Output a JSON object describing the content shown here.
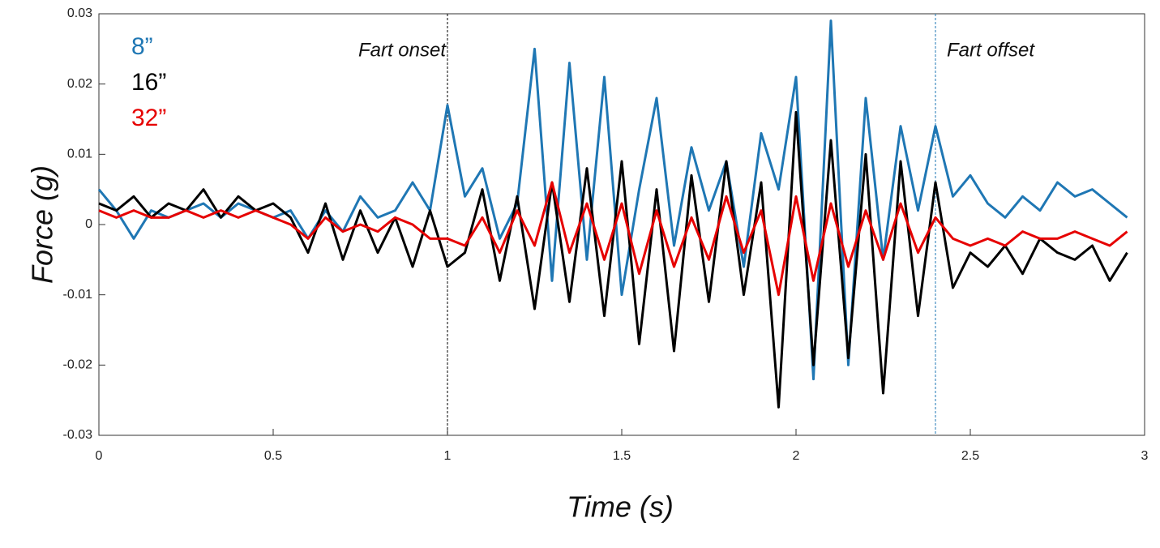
{
  "chart_data": {
    "type": "line",
    "xlabel": "Time (s)",
    "ylabel": "Force (g)",
    "x": [
      0,
      0.05,
      0.1,
      0.15,
      0.2,
      0.25,
      0.3,
      0.35,
      0.4,
      0.45,
      0.5,
      0.55,
      0.6,
      0.65,
      0.7,
      0.75,
      0.8,
      0.85,
      0.9,
      0.95,
      1,
      1.05,
      1.1,
      1.15,
      1.2,
      1.25,
      1.3,
      1.35,
      1.4,
      1.45,
      1.5,
      1.55,
      1.6,
      1.65,
      1.7,
      1.75,
      1.8,
      1.85,
      1.9,
      1.95,
      2,
      2.05,
      2.1,
      2.15,
      2.2,
      2.25,
      2.3,
      2.35,
      2.4,
      2.45,
      2.5,
      2.55,
      2.6,
      2.65,
      2.7,
      2.75,
      2.8,
      2.85,
      2.9,
      2.95
    ],
    "series": [
      {
        "name": "8”",
        "color": "#1f77b4",
        "values": [
          0.005,
          0.002,
          -0.002,
          0.002,
          0.001,
          0.002,
          0.003,
          0.001,
          0.003,
          0.002,
          0.001,
          0.002,
          -0.002,
          0.002,
          -0.001,
          0.004,
          0.001,
          0.002,
          0.006,
          0.002,
          0.017,
          0.004,
          0.008,
          -0.002,
          0.003,
          0.025,
          -0.008,
          0.023,
          -0.005,
          0.021,
          -0.01,
          0.005,
          0.018,
          -0.003,
          0.011,
          0.002,
          0.009,
          -0.006,
          0.013,
          0.005,
          0.021,
          -0.022,
          0.029,
          -0.02,
          0.018,
          -0.005,
          0.014,
          0.002,
          0.014,
          0.004,
          0.007,
          0.003,
          0.001,
          0.004,
          0.002,
          0.006,
          0.004,
          0.005,
          0.003,
          0.001
        ]
      },
      {
        "name": "16”",
        "color": "#000000",
        "values": [
          0.003,
          0.002,
          0.004,
          0.001,
          0.003,
          0.002,
          0.005,
          0.001,
          0.004,
          0.002,
          0.003,
          0.001,
          -0.004,
          0.003,
          -0.005,
          0.002,
          -0.004,
          0.001,
          -0.006,
          0.002,
          -0.006,
          -0.004,
          0.005,
          -0.008,
          0.004,
          -0.012,
          0.006,
          -0.011,
          0.008,
          -0.013,
          0.009,
          -0.017,
          0.005,
          -0.018,
          0.007,
          -0.011,
          0.009,
          -0.01,
          0.006,
          -0.026,
          0.016,
          -0.02,
          0.012,
          -0.019,
          0.01,
          -0.024,
          0.009,
          -0.013,
          0.006,
          -0.009,
          -0.004,
          -0.006,
          -0.003,
          -0.007,
          -0.002,
          -0.004,
          -0.005,
          -0.003,
          -0.008,
          -0.004
        ]
      },
      {
        "name": "32”",
        "color": "#e60000",
        "values": [
          0.002,
          0.001,
          0.002,
          0.001,
          0.001,
          0.002,
          0.001,
          0.002,
          0.001,
          0.002,
          0.001,
          0.0,
          -0.002,
          0.001,
          -0.001,
          0.0,
          -0.001,
          0.001,
          0.0,
          -0.002,
          -0.002,
          -0.003,
          0.001,
          -0.004,
          0.002,
          -0.003,
          0.006,
          -0.004,
          0.003,
          -0.005,
          0.003,
          -0.007,
          0.002,
          -0.006,
          0.001,
          -0.005,
          0.004,
          -0.004,
          0.002,
          -0.01,
          0.004,
          -0.008,
          0.003,
          -0.006,
          0.002,
          -0.005,
          0.003,
          -0.004,
          0.001,
          -0.002,
          -0.003,
          -0.002,
          -0.003,
          -0.001,
          -0.002,
          -0.002,
          -0.001,
          -0.002,
          -0.003,
          -0.001
        ]
      }
    ],
    "xlim": [
      0,
      3
    ],
    "xticks": [
      0,
      0.5,
      1,
      1.5,
      2,
      2.5,
      3
    ],
    "ylim": [
      -0.03,
      0.03
    ],
    "yticks": [
      -0.03,
      -0.02,
      -0.01,
      0,
      0.01,
      0.02,
      0.03
    ],
    "legend": "top-left",
    "grid": false,
    "annotations": [
      {
        "text": "Fart onset",
        "x": 1,
        "color": "#000000"
      },
      {
        "text": "Fart offset",
        "x": 2.4,
        "color": "#1f77b4"
      }
    ]
  }
}
